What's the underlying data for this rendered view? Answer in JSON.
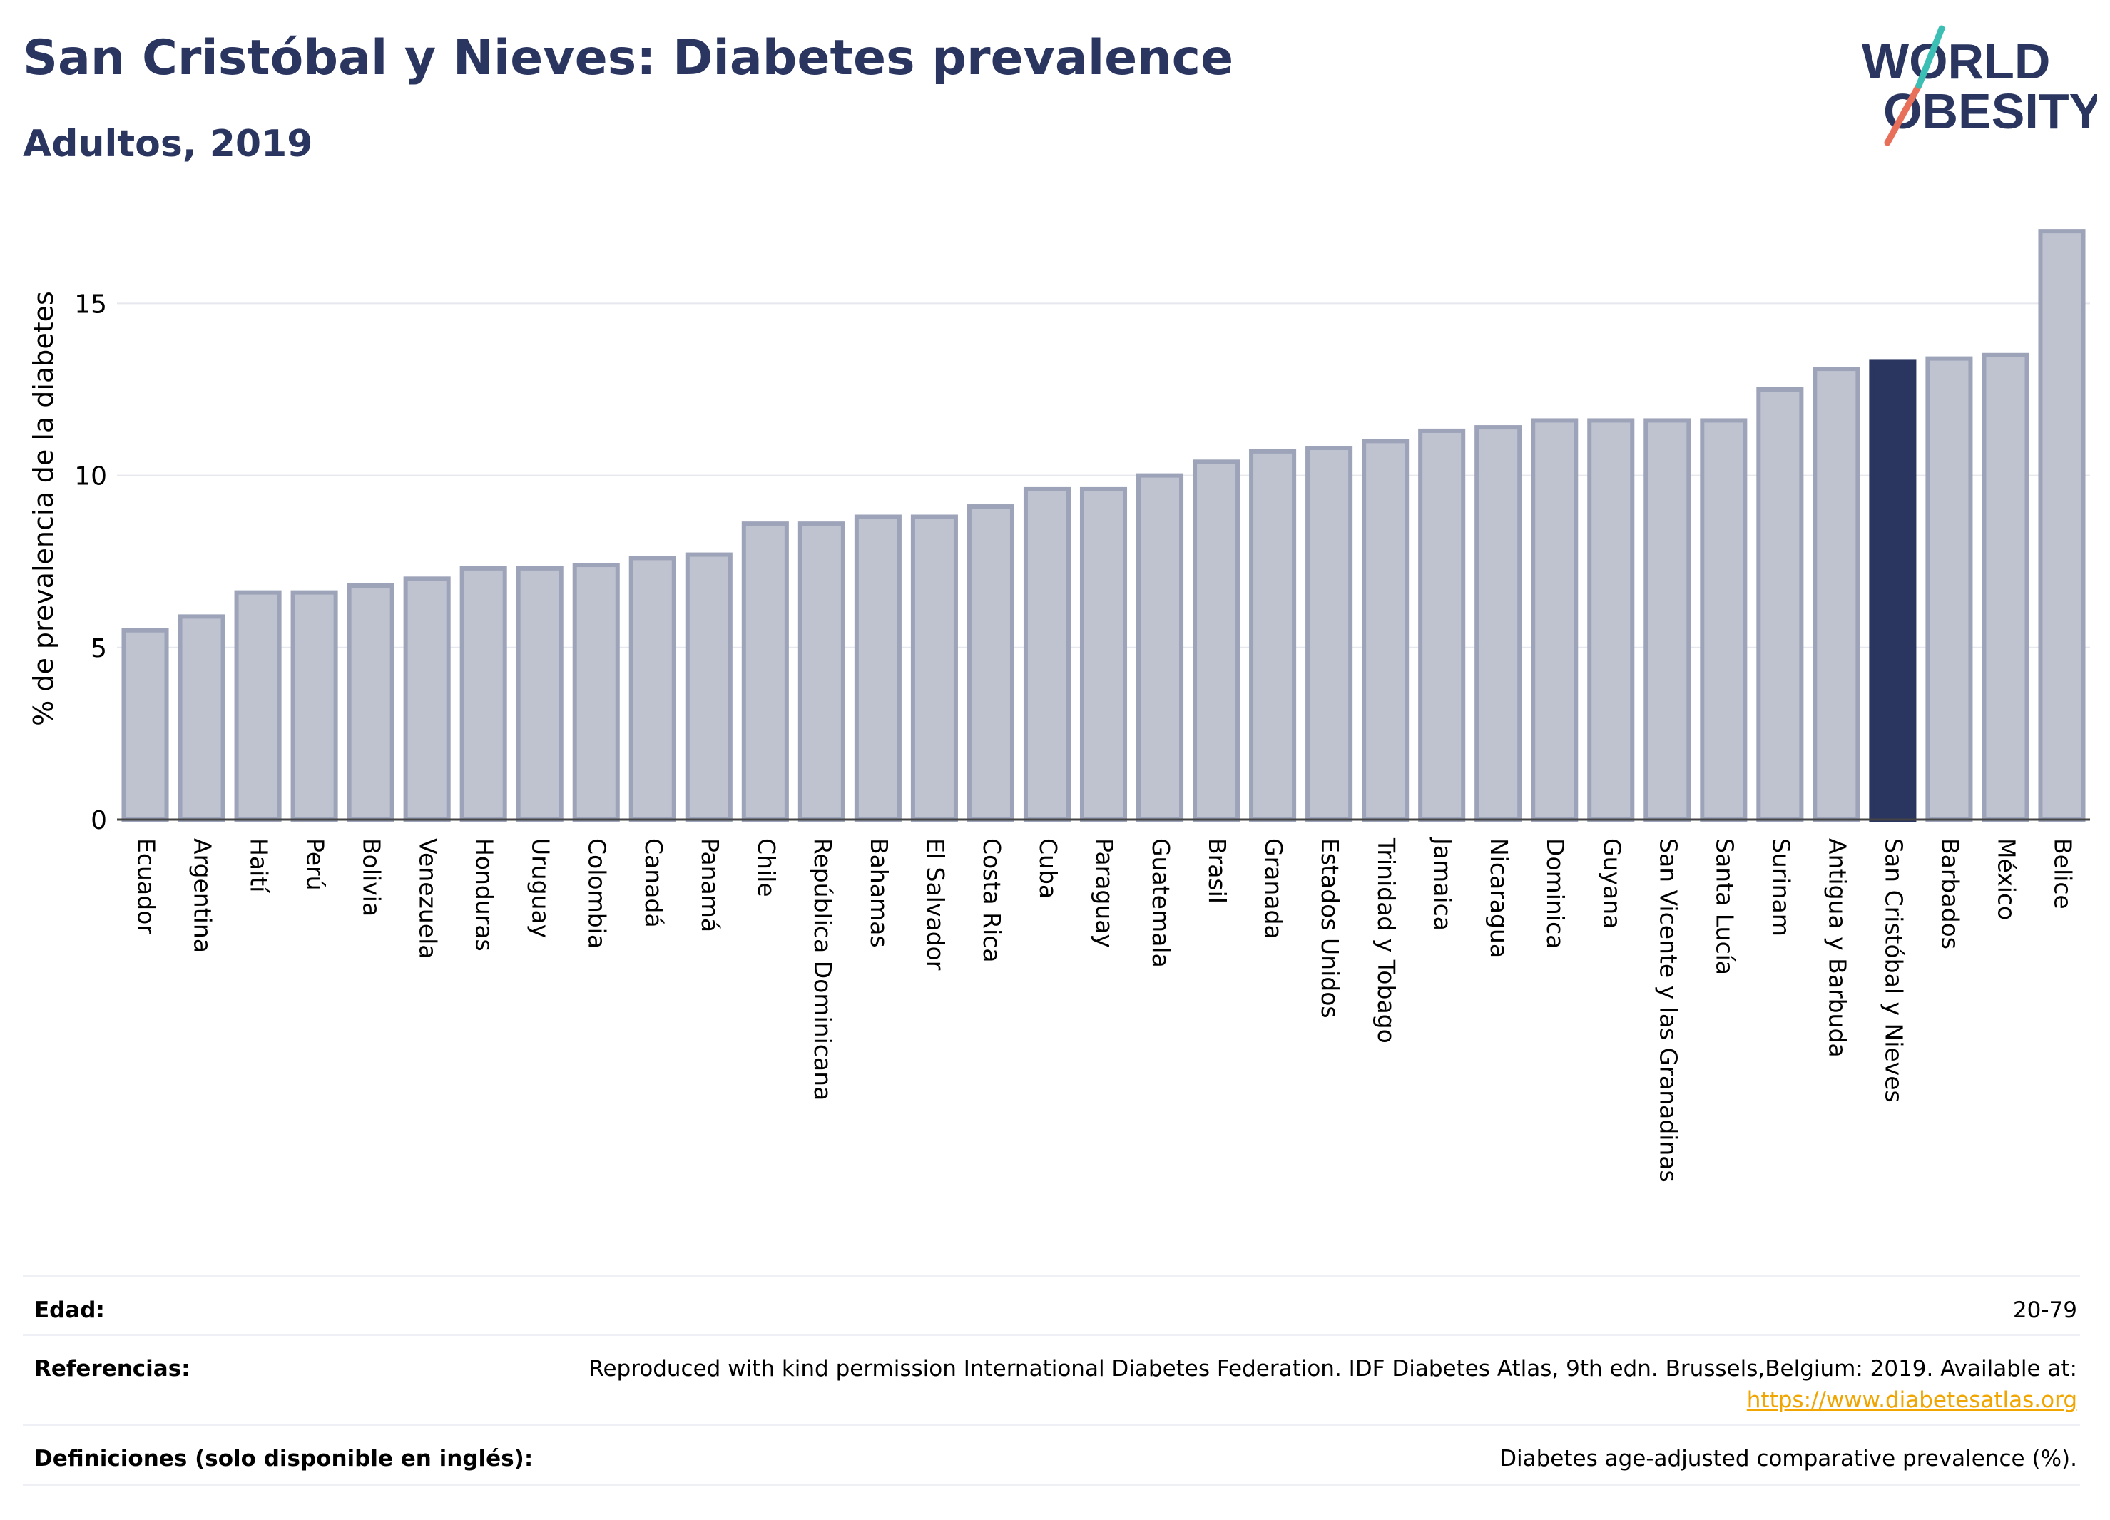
{
  "header": {
    "title": "San Cristóbal y Nieves: Diabetes prevalence",
    "subtitle": "Adultos, 2019"
  },
  "logo": {
    "line1": "WORLD",
    "line2": "OBESITY"
  },
  "chart_data": {
    "type": "bar",
    "ylabel": "% de prevalencia de la diabetes",
    "xlabel": "",
    "ylim": [
      0,
      17.6
    ],
    "yticks": [
      0,
      5,
      10,
      15
    ],
    "grid": true,
    "highlight": "San Cristóbal y Nieves",
    "colors": {
      "bar": "#bfc3cf",
      "bar_border": "#9da3b8",
      "highlight": "#2a3560",
      "grid": "#e6e8ee"
    },
    "categories": [
      "Ecuador",
      "Argentina",
      "Haití",
      "Perú",
      "Bolivia",
      "Venezuela",
      "Honduras",
      "Uruguay",
      "Colombia",
      "Canadá",
      "Panamá",
      "Chile",
      "República Dominicana",
      "Bahamas",
      "El Salvador",
      "Costa Rica",
      "Cuba",
      "Paraguay",
      "Guatemala",
      "Brasil",
      "Granada",
      "Estados Unidos",
      "Trinidad y Tobago",
      "Jamaica",
      "Nicaragua",
      "Dominica",
      "Guyana",
      "San Vicente y las Granadinas",
      "Santa Lucía",
      "Surinam",
      "Antigua y Barbuda",
      "San Cristóbal y Nieves",
      "Barbados",
      "México",
      "Belice"
    ],
    "values": [
      5.5,
      5.9,
      6.6,
      6.6,
      6.8,
      7.0,
      7.3,
      7.3,
      7.4,
      7.6,
      7.7,
      8.6,
      8.6,
      8.8,
      8.8,
      9.1,
      9.6,
      9.6,
      10.0,
      10.4,
      10.7,
      10.8,
      11.0,
      11.3,
      11.4,
      11.6,
      11.6,
      11.6,
      11.6,
      12.5,
      13.1,
      13.3,
      13.4,
      13.5,
      17.1
    ]
  },
  "meta": {
    "edad_label": "Edad:",
    "edad_value": "20-79",
    "ref_label": "Referencias:",
    "ref_text": "Reproduced with kind permission International Diabetes Federation. IDF Diabetes Atlas, 9th edn. Brussels,Belgium: 2019. Available at:",
    "ref_link": "https://www.diabetesatlas.org",
    "def_label": "Definiciones (solo disponible en inglés):",
    "def_value": "Diabetes age-adjusted comparative prevalence (%)."
  }
}
